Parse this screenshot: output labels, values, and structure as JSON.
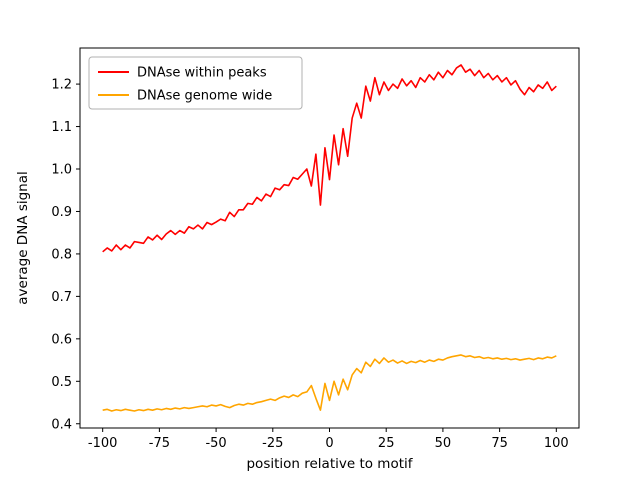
{
  "chart_data": {
    "type": "line",
    "title": "",
    "xlabel": "position relative to motif",
    "ylabel": "average DNA signal",
    "xlim": [
      -110,
      110
    ],
    "ylim": [
      0.39,
      1.285
    ],
    "x_ticks": [
      -100,
      -75,
      -50,
      -25,
      0,
      25,
      50,
      75,
      100
    ],
    "y_ticks": [
      0.4,
      0.5,
      0.6,
      0.7,
      0.8,
      0.9,
      1.0,
      1.1,
      1.2
    ],
    "grid": false,
    "legend_position": "upper left",
    "x": [
      -100,
      -98,
      -96,
      -94,
      -92,
      -90,
      -88,
      -86,
      -84,
      -82,
      -80,
      -78,
      -76,
      -74,
      -72,
      -70,
      -68,
      -66,
      -64,
      -62,
      -60,
      -58,
      -56,
      -54,
      -52,
      -50,
      -48,
      -46,
      -44,
      -42,
      -40,
      -38,
      -36,
      -34,
      -32,
      -30,
      -28,
      -26,
      -24,
      -22,
      -20,
      -18,
      -16,
      -14,
      -12,
      -10,
      -8,
      -6,
      -4,
      -2,
      0,
      2,
      4,
      6,
      8,
      10,
      12,
      14,
      16,
      18,
      20,
      22,
      24,
      26,
      28,
      30,
      32,
      34,
      36,
      38,
      40,
      42,
      44,
      46,
      48,
      50,
      52,
      54,
      56,
      58,
      60,
      62,
      64,
      66,
      68,
      70,
      72,
      74,
      76,
      78,
      80,
      82,
      84,
      86,
      88,
      90,
      92,
      94,
      96,
      98,
      100
    ],
    "series": [
      {
        "name": "DNAse within peaks",
        "color": "#ff0000",
        "values": [
          0.805,
          0.814,
          0.807,
          0.821,
          0.81,
          0.821,
          0.814,
          0.829,
          0.827,
          0.825,
          0.84,
          0.833,
          0.844,
          0.834,
          0.847,
          0.855,
          0.846,
          0.855,
          0.849,
          0.864,
          0.859,
          0.868,
          0.859,
          0.874,
          0.869,
          0.875,
          0.882,
          0.878,
          0.898,
          0.888,
          0.904,
          0.904,
          0.919,
          0.917,
          0.933,
          0.925,
          0.941,
          0.935,
          0.955,
          0.951,
          0.963,
          0.961,
          0.98,
          0.976,
          0.988,
          1.0,
          0.96,
          1.035,
          0.915,
          1.05,
          0.975,
          1.08,
          1.01,
          1.095,
          1.03,
          1.12,
          1.155,
          1.12,
          1.195,
          1.16,
          1.215,
          1.175,
          1.205,
          1.185,
          1.2,
          1.19,
          1.212,
          1.196,
          1.208,
          1.192,
          1.215,
          1.205,
          1.222,
          1.21,
          1.228,
          1.215,
          1.232,
          1.222,
          1.238,
          1.245,
          1.228,
          1.235,
          1.22,
          1.232,
          1.215,
          1.225,
          1.21,
          1.22,
          1.205,
          1.215,
          1.198,
          1.208,
          1.188,
          1.175,
          1.192,
          1.182,
          1.198,
          1.19,
          1.205,
          1.185,
          1.195
        ]
      },
      {
        "name": "DNAse genome wide",
        "color": "#ffa500",
        "values": [
          0.432,
          0.434,
          0.43,
          0.433,
          0.431,
          0.434,
          0.432,
          0.43,
          0.433,
          0.431,
          0.434,
          0.432,
          0.435,
          0.433,
          0.436,
          0.434,
          0.437,
          0.435,
          0.438,
          0.436,
          0.438,
          0.44,
          0.442,
          0.44,
          0.444,
          0.442,
          0.445,
          0.441,
          0.438,
          0.443,
          0.446,
          0.444,
          0.448,
          0.446,
          0.45,
          0.452,
          0.455,
          0.458,
          0.455,
          0.461,
          0.465,
          0.462,
          0.468,
          0.464,
          0.472,
          0.475,
          0.49,
          0.46,
          0.432,
          0.495,
          0.455,
          0.5,
          0.468,
          0.505,
          0.48,
          0.515,
          0.53,
          0.52,
          0.545,
          0.535,
          0.552,
          0.542,
          0.555,
          0.545,
          0.55,
          0.543,
          0.548,
          0.542,
          0.547,
          0.544,
          0.549,
          0.545,
          0.55,
          0.547,
          0.552,
          0.55,
          0.555,
          0.558,
          0.56,
          0.562,
          0.558,
          0.56,
          0.556,
          0.558,
          0.554,
          0.556,
          0.553,
          0.555,
          0.552,
          0.554,
          0.551,
          0.553,
          0.55,
          0.552,
          0.554,
          0.551,
          0.555,
          0.553,
          0.557,
          0.555,
          0.56
        ]
      }
    ]
  }
}
